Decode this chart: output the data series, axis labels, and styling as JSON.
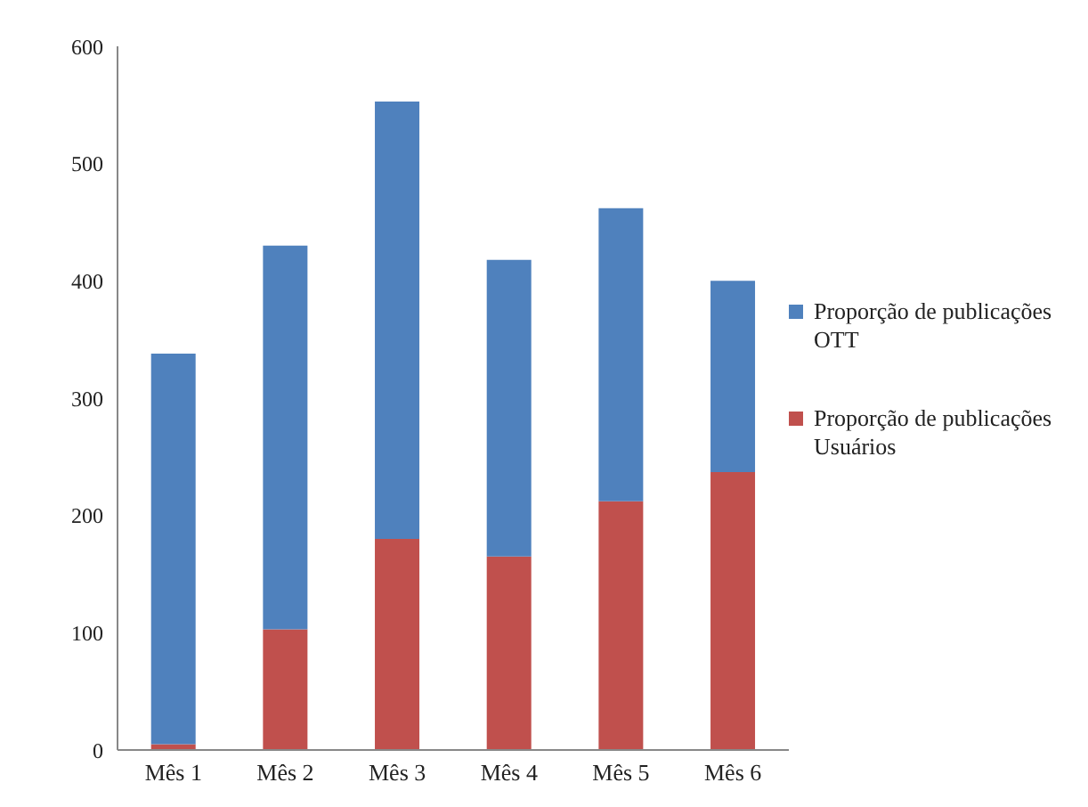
{
  "chart_data": {
    "type": "bar",
    "stacked": true,
    "categories": [
      "Mês 1",
      "Mês 2",
      "Mês 3",
      "Mês 4",
      "Mês 5",
      "Mês 6"
    ],
    "series": [
      {
        "name": "Proporção de publicações Usuários",
        "color": "#c0504d",
        "values": [
          5,
          103,
          180,
          165,
          212,
          237
        ]
      },
      {
        "name": "Proporção de publicações OTT",
        "color": "#4f81bd",
        "values": [
          333,
          327,
          373,
          253,
          250,
          163
        ]
      }
    ],
    "ylim": [
      0,
      600
    ],
    "yticks": [
      0,
      100,
      200,
      300,
      400,
      500,
      600
    ],
    "grid": false,
    "legend": "right"
  }
}
